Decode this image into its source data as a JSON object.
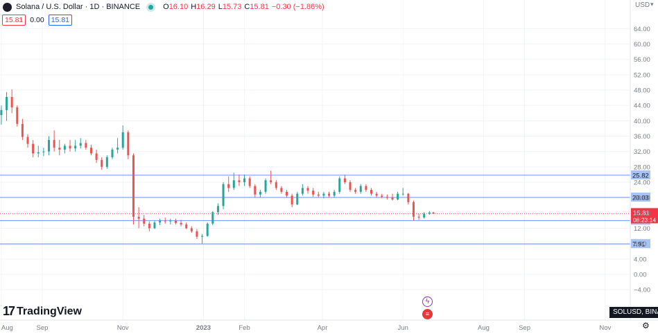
{
  "legend": {
    "symbol": "Solana / U.S. Dollar · 1D · BINANCE",
    "o_label": "O",
    "o": "16.10",
    "h_label": "H",
    "h": "16.29",
    "l_label": "L",
    "l": "15.73",
    "c_label": "C",
    "c": "15.81",
    "change": "−0.30 (−1.86%)",
    "sell": "15.81",
    "spread": "0.00",
    "buy": "15.81"
  },
  "currency": "USD",
  "brand": "TradingView",
  "ticker": "SOLUSD, BINANCE",
  "colors": {
    "up": "#26a69a",
    "down": "#ef5350",
    "level": "#2962ff",
    "level_label_bg": "#a8c4f7",
    "price_label_bg": "#f23645",
    "axis_text": "#787b86",
    "grid": "#f0f3fa"
  },
  "chart_data": {
    "type": "candlestick",
    "y_axis": {
      "ticks": [
        -4,
        0,
        4,
        8,
        12,
        16,
        20,
        24,
        28,
        32,
        36,
        40,
        44,
        48,
        52,
        56,
        60,
        64
      ],
      "tick_labels": [
        "−4.00",
        "0.00",
        "4.00",
        "8.00",
        "12.00",
        "16.00",
        "20.00",
        "24.00",
        "28.00",
        "32.00",
        "36.00",
        "40.00",
        "44.00",
        "48.00",
        "52.00",
        "56.00",
        "60.00",
        "64.00"
      ],
      "range": [
        -6.5,
        67.5
      ]
    },
    "x_axis": {
      "labels": [
        "Aug",
        "Sep",
        "Nov",
        "2023",
        "Feb",
        "Apr",
        "Jun",
        "Aug",
        "Sep",
        "Nov"
      ],
      "bold": [
        "2023"
      ]
    },
    "horizontal_levels": [
      {
        "value": 25.82,
        "label": "25.82"
      },
      {
        "value": 20.03,
        "label": "20.03"
      },
      {
        "value": 14.0,
        "label": "14.00"
      },
      {
        "value": 7.91,
        "label": "7.91"
      }
    ],
    "last_price": {
      "value": 15.81,
      "label": "15.81",
      "countdown": "08:23:14"
    },
    "candles": [
      {
        "date": "2022-08-01",
        "o": 41.5,
        "h": 44.0,
        "l": 39.0,
        "c": 42.8
      },
      {
        "date": "2022-08-05",
        "o": 42.8,
        "h": 47.5,
        "l": 40.0,
        "c": 46.2
      },
      {
        "date": "2022-08-09",
        "o": 46.2,
        "h": 48.2,
        "l": 42.0,
        "c": 43.5
      },
      {
        "date": "2022-08-13",
        "o": 43.5,
        "h": 44.0,
        "l": 38.5,
        "c": 39.2
      },
      {
        "date": "2022-08-17",
        "o": 39.2,
        "h": 40.5,
        "l": 35.0,
        "c": 35.8
      },
      {
        "date": "2022-08-21",
        "o": 35.8,
        "h": 36.5,
        "l": 33.0,
        "c": 34.0
      },
      {
        "date": "2022-08-25",
        "o": 34.0,
        "h": 35.0,
        "l": 30.5,
        "c": 31.5
      },
      {
        "date": "2022-08-29",
        "o": 31.5,
        "h": 33.5,
        "l": 30.5,
        "c": 31.8
      },
      {
        "date": "2022-09-02",
        "o": 31.8,
        "h": 33.0,
        "l": 30.8,
        "c": 32.0
      },
      {
        "date": "2022-09-06",
        "o": 32.0,
        "h": 36.0,
        "l": 31.0,
        "c": 35.0
      },
      {
        "date": "2022-09-10",
        "o": 35.0,
        "h": 37.5,
        "l": 32.0,
        "c": 33.0
      },
      {
        "date": "2022-09-14",
        "o": 33.0,
        "h": 35.0,
        "l": 31.0,
        "c": 32.5
      },
      {
        "date": "2022-09-18",
        "o": 32.5,
        "h": 34.0,
        "l": 31.5,
        "c": 33.5
      },
      {
        "date": "2022-09-22",
        "o": 33.5,
        "h": 35.0,
        "l": 32.0,
        "c": 32.8
      },
      {
        "date": "2022-09-26",
        "o": 32.8,
        "h": 35.0,
        "l": 32.0,
        "c": 33.5
      },
      {
        "date": "2022-09-30",
        "o": 33.5,
        "h": 35.5,
        "l": 32.8,
        "c": 34.2
      },
      {
        "date": "2022-10-04",
        "o": 34.2,
        "h": 35.0,
        "l": 32.5,
        "c": 33.0
      },
      {
        "date": "2022-10-08",
        "o": 33.0,
        "h": 33.8,
        "l": 31.0,
        "c": 31.5
      },
      {
        "date": "2022-10-12",
        "o": 31.5,
        "h": 32.5,
        "l": 29.0,
        "c": 29.8
      },
      {
        "date": "2022-10-16",
        "o": 29.8,
        "h": 30.5,
        "l": 27.2,
        "c": 28.0
      },
      {
        "date": "2022-10-20",
        "o": 28.0,
        "h": 31.0,
        "l": 27.5,
        "c": 30.5
      },
      {
        "date": "2022-10-24",
        "o": 30.5,
        "h": 33.0,
        "l": 30.0,
        "c": 32.5
      },
      {
        "date": "2022-10-28",
        "o": 32.5,
        "h": 35.5,
        "l": 31.5,
        "c": 33.0
      },
      {
        "date": "2022-11-01",
        "o": 33.0,
        "h": 38.8,
        "l": 32.5,
        "c": 37.0
      },
      {
        "date": "2022-11-05",
        "o": 37.0,
        "h": 37.5,
        "l": 30.0,
        "c": 31.0
      },
      {
        "date": "2022-11-09",
        "o": 31.0,
        "h": 31.5,
        "l": 13.0,
        "c": 15.0
      },
      {
        "date": "2022-11-13",
        "o": 15.0,
        "h": 17.5,
        "l": 12.0,
        "c": 14.5
      },
      {
        "date": "2022-11-17",
        "o": 14.5,
        "h": 15.5,
        "l": 12.5,
        "c": 13.2
      },
      {
        "date": "2022-11-21",
        "o": 13.2,
        "h": 13.8,
        "l": 11.2,
        "c": 12.0
      },
      {
        "date": "2022-11-25",
        "o": 12.0,
        "h": 14.0,
        "l": 11.8,
        "c": 13.5
      },
      {
        "date": "2022-11-29",
        "o": 13.5,
        "h": 14.5,
        "l": 12.8,
        "c": 14.0
      },
      {
        "date": "2022-12-03",
        "o": 14.0,
        "h": 14.8,
        "l": 13.2,
        "c": 13.8
      },
      {
        "date": "2022-12-07",
        "o": 13.8,
        "h": 14.5,
        "l": 13.0,
        "c": 14.0
      },
      {
        "date": "2022-12-11",
        "o": 14.0,
        "h": 14.5,
        "l": 13.0,
        "c": 13.4
      },
      {
        "date": "2022-12-15",
        "o": 13.4,
        "h": 14.2,
        "l": 12.5,
        "c": 13.0
      },
      {
        "date": "2022-12-19",
        "o": 13.0,
        "h": 13.5,
        "l": 11.8,
        "c": 12.0
      },
      {
        "date": "2022-12-23",
        "o": 12.0,
        "h": 12.5,
        "l": 10.8,
        "c": 11.2
      },
      {
        "date": "2022-12-27",
        "o": 11.2,
        "h": 11.8,
        "l": 9.2,
        "c": 9.8
      },
      {
        "date": "2022-12-31",
        "o": 9.8,
        "h": 10.5,
        "l": 8.0,
        "c": 10.0
      },
      {
        "date": "2023-01-04",
        "o": 10.0,
        "h": 13.5,
        "l": 9.8,
        "c": 13.2
      },
      {
        "date": "2023-01-08",
        "o": 13.2,
        "h": 16.5,
        "l": 12.8,
        "c": 16.2
      },
      {
        "date": "2023-01-12",
        "o": 16.2,
        "h": 18.5,
        "l": 15.5,
        "c": 17.8
      },
      {
        "date": "2023-01-16",
        "o": 17.8,
        "h": 24.0,
        "l": 17.0,
        "c": 23.5
      },
      {
        "date": "2023-01-20",
        "o": 23.5,
        "h": 25.5,
        "l": 21.5,
        "c": 22.5
      },
      {
        "date": "2023-01-24",
        "o": 22.5,
        "h": 26.5,
        "l": 22.0,
        "c": 24.5
      },
      {
        "date": "2023-01-28",
        "o": 24.5,
        "h": 26.0,
        "l": 23.0,
        "c": 24.0
      },
      {
        "date": "2023-02-01",
        "o": 24.0,
        "h": 26.0,
        "l": 23.0,
        "c": 25.0
      },
      {
        "date": "2023-02-05",
        "o": 25.0,
        "h": 25.5,
        "l": 22.5,
        "c": 23.0
      },
      {
        "date": "2023-02-09",
        "o": 23.0,
        "h": 23.5,
        "l": 20.0,
        "c": 20.8
      },
      {
        "date": "2023-02-13",
        "o": 20.8,
        "h": 22.0,
        "l": 20.0,
        "c": 21.5
      },
      {
        "date": "2023-02-17",
        "o": 21.5,
        "h": 25.0,
        "l": 21.0,
        "c": 24.5
      },
      {
        "date": "2023-02-21",
        "o": 24.5,
        "h": 27.0,
        "l": 23.5,
        "c": 24.0
      },
      {
        "date": "2023-02-25",
        "o": 24.0,
        "h": 24.5,
        "l": 22.0,
        "c": 22.5
      },
      {
        "date": "2023-03-01",
        "o": 22.5,
        "h": 23.0,
        "l": 21.0,
        "c": 21.5
      },
      {
        "date": "2023-03-05",
        "o": 21.5,
        "h": 22.0,
        "l": 20.0,
        "c": 20.5
      },
      {
        "date": "2023-03-09",
        "o": 20.5,
        "h": 21.0,
        "l": 17.5,
        "c": 18.2
      },
      {
        "date": "2023-03-13",
        "o": 18.2,
        "h": 21.5,
        "l": 18.0,
        "c": 21.0
      },
      {
        "date": "2023-03-17",
        "o": 21.0,
        "h": 23.5,
        "l": 20.5,
        "c": 22.5
      },
      {
        "date": "2023-03-21",
        "o": 22.5,
        "h": 23.0,
        "l": 21.0,
        "c": 21.8
      },
      {
        "date": "2023-03-25",
        "o": 21.8,
        "h": 22.5,
        "l": 20.2,
        "c": 20.8
      },
      {
        "date": "2023-03-29",
        "o": 20.8,
        "h": 21.5,
        "l": 20.0,
        "c": 20.5
      },
      {
        "date": "2023-04-02",
        "o": 20.5,
        "h": 21.5,
        "l": 19.8,
        "c": 21.0
      },
      {
        "date": "2023-04-06",
        "o": 21.0,
        "h": 21.5,
        "l": 20.0,
        "c": 20.5
      },
      {
        "date": "2023-04-10",
        "o": 20.5,
        "h": 22.0,
        "l": 20.0,
        "c": 21.5
      },
      {
        "date": "2023-04-14",
        "o": 21.5,
        "h": 25.5,
        "l": 21.0,
        "c": 25.0
      },
      {
        "date": "2023-04-18",
        "o": 25.0,
        "h": 26.0,
        "l": 23.5,
        "c": 24.0
      },
      {
        "date": "2023-04-22",
        "o": 24.0,
        "h": 24.5,
        "l": 21.5,
        "c": 22.0
      },
      {
        "date": "2023-04-26",
        "o": 22.0,
        "h": 22.5,
        "l": 21.0,
        "c": 21.5
      },
      {
        "date": "2023-04-30",
        "o": 21.5,
        "h": 23.5,
        "l": 21.0,
        "c": 23.0
      },
      {
        "date": "2023-05-04",
        "o": 23.0,
        "h": 23.5,
        "l": 21.5,
        "c": 22.0
      },
      {
        "date": "2023-05-08",
        "o": 22.0,
        "h": 22.5,
        "l": 20.5,
        "c": 21.0
      },
      {
        "date": "2023-05-12",
        "o": 21.0,
        "h": 21.5,
        "l": 20.0,
        "c": 20.5
      },
      {
        "date": "2023-05-16",
        "o": 20.5,
        "h": 21.0,
        "l": 19.8,
        "c": 20.2
      },
      {
        "date": "2023-05-20",
        "o": 20.2,
        "h": 20.8,
        "l": 19.5,
        "c": 20.0
      },
      {
        "date": "2023-05-24",
        "o": 20.0,
        "h": 21.0,
        "l": 19.2,
        "c": 19.5
      },
      {
        "date": "2023-05-28",
        "o": 19.5,
        "h": 21.5,
        "l": 19.3,
        "c": 21.0
      },
      {
        "date": "2023-06-01",
        "o": 21.0,
        "h": 22.5,
        "l": 20.5,
        "c": 21.0
      },
      {
        "date": "2023-06-05",
        "o": 21.0,
        "h": 21.2,
        "l": 18.2,
        "c": 18.8
      },
      {
        "date": "2023-06-09",
        "o": 18.8,
        "h": 19.2,
        "l": 14.0,
        "c": 15.0
      },
      {
        "date": "2023-06-13",
        "o": 15.0,
        "h": 15.8,
        "l": 14.2,
        "c": 14.8
      },
      {
        "date": "2023-06-17",
        "o": 14.8,
        "h": 16.2,
        "l": 14.5,
        "c": 15.8
      },
      {
        "date": "2023-06-21",
        "o": 15.8,
        "h": 16.5,
        "l": 15.5,
        "c": 16.1
      },
      {
        "date": "2023-06-24",
        "o": 16.1,
        "h": 16.29,
        "l": 15.73,
        "c": 15.81
      }
    ]
  }
}
